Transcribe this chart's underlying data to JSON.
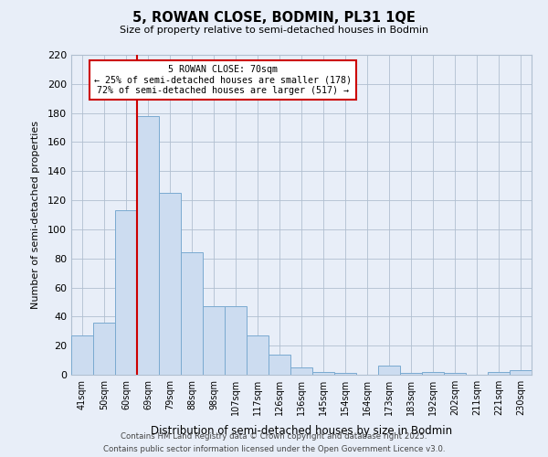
{
  "title": "5, ROWAN CLOSE, BODMIN, PL31 1QE",
  "subtitle": "Size of property relative to semi-detached houses in Bodmin",
  "xlabel": "Distribution of semi-detached houses by size in Bodmin",
  "ylabel": "Number of semi-detached properties",
  "categories": [
    "41sqm",
    "50sqm",
    "60sqm",
    "69sqm",
    "79sqm",
    "88sqm",
    "98sqm",
    "107sqm",
    "117sqm",
    "126sqm",
    "136sqm",
    "145sqm",
    "154sqm",
    "164sqm",
    "173sqm",
    "183sqm",
    "192sqm",
    "202sqm",
    "211sqm",
    "221sqm",
    "230sqm"
  ],
  "values": [
    27,
    36,
    113,
    178,
    125,
    84,
    47,
    47,
    27,
    14,
    5,
    2,
    1,
    0,
    6,
    1,
    2,
    1,
    0,
    2,
    3
  ],
  "bar_color": "#ccdcf0",
  "bar_edge_color": "#7aaad0",
  "vline_x_index": 3,
  "vline_color": "#cc0000",
  "annotation_title": "5 ROWAN CLOSE: 70sqm",
  "annotation_line1": "← 25% of semi-detached houses are smaller (178)",
  "annotation_line2": "72% of semi-detached houses are larger (517) →",
  "annotation_box_facecolor": "#ffffff",
  "annotation_box_edgecolor": "#cc0000",
  "ylim": [
    0,
    220
  ],
  "yticks": [
    0,
    20,
    40,
    60,
    80,
    100,
    120,
    140,
    160,
    180,
    200,
    220
  ],
  "background_color": "#e8eef8",
  "grid_color": "#b0bfd0",
  "footer1": "Contains HM Land Registry data © Crown copyright and database right 2025.",
  "footer2": "Contains public sector information licensed under the Open Government Licence v3.0."
}
